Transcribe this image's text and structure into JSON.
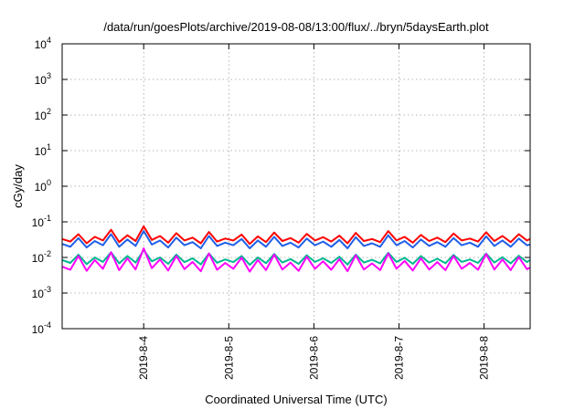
{
  "chart_data": {
    "type": "line",
    "title": "/data/run/goesPlots/archive/2019-08-08/13:00/flux/../bryn/5daysEarth.plot",
    "xlabel": "Coordinated Universal Time (UTC)",
    "ylabel": "cGy/day",
    "yscale": "log",
    "ylim": [
      0.0001,
      10000
    ],
    "xlim": [
      "2019-08-03 01:00",
      "2019-08-08 13:00"
    ],
    "grid": true,
    "y_ticks": [
      {
        "value": 0.0001,
        "base": "10",
        "exp": "-4"
      },
      {
        "value": 0.001,
        "base": "10",
        "exp": "-3"
      },
      {
        "value": 0.01,
        "base": "10",
        "exp": "-2"
      },
      {
        "value": 0.1,
        "base": "10",
        "exp": "-1"
      },
      {
        "value": 1,
        "base": "10",
        "exp": "0"
      },
      {
        "value": 10,
        "base": "10",
        "exp": "1"
      },
      {
        "value": 100,
        "base": "10",
        "exp": "2"
      },
      {
        "value": 1000,
        "base": "10",
        "exp": "3"
      },
      {
        "value": 10000,
        "base": "10",
        "exp": "4"
      }
    ],
    "x_ticks": [
      {
        "value": "2019-08-04 00:00",
        "label": "2019-8-4"
      },
      {
        "value": "2019-08-05 00:00",
        "label": "2019-8-5"
      },
      {
        "value": "2019-08-06 00:00",
        "label": "2019-8-6"
      },
      {
        "value": "2019-08-07 00:00",
        "label": "2019-8-7"
      },
      {
        "value": "2019-08-08 00:00",
        "label": "2019-8-8"
      }
    ],
    "x": [
      "2019-08-03 01:00",
      "2019-08-03 03:18",
      "2019-08-03 05:36",
      "2019-08-03 07:54",
      "2019-08-03 10:12",
      "2019-08-03 12:30",
      "2019-08-03 14:48",
      "2019-08-03 17:06",
      "2019-08-03 19:24",
      "2019-08-03 21:42",
      "2019-08-04 00:00",
      "2019-08-04 02:18",
      "2019-08-04 04:36",
      "2019-08-04 06:54",
      "2019-08-04 09:12",
      "2019-08-04 11:30",
      "2019-08-04 13:48",
      "2019-08-04 16:06",
      "2019-08-04 18:24",
      "2019-08-04 20:42",
      "2019-08-04 23:00",
      "2019-08-05 01:18",
      "2019-08-05 03:36",
      "2019-08-05 05:54",
      "2019-08-05 08:12",
      "2019-08-05 10:30",
      "2019-08-05 12:48",
      "2019-08-05 15:06",
      "2019-08-05 17:24",
      "2019-08-05 19:42",
      "2019-08-05 22:00",
      "2019-08-06 00:18",
      "2019-08-06 02:36",
      "2019-08-06 04:54",
      "2019-08-06 07:12",
      "2019-08-06 09:30",
      "2019-08-06 11:48",
      "2019-08-06 14:06",
      "2019-08-06 16:24",
      "2019-08-06 18:42",
      "2019-08-06 21:00",
      "2019-08-06 23:18",
      "2019-08-07 01:36",
      "2019-08-07 03:54",
      "2019-08-07 06:12",
      "2019-08-07 08:30",
      "2019-08-07 10:48",
      "2019-08-07 13:06",
      "2019-08-07 15:24",
      "2019-08-07 17:42",
      "2019-08-07 20:00",
      "2019-08-07 22:18",
      "2019-08-08 00:36",
      "2019-08-08 02:54",
      "2019-08-08 05:12",
      "2019-08-08 07:30",
      "2019-08-08 09:48",
      "2019-08-08 12:06",
      "2019-08-08 13:00"
    ],
    "series": [
      {
        "color": "#ff0000",
        "values": [
          0.033,
          0.028,
          0.045,
          0.025,
          0.038,
          0.03,
          0.06,
          0.027,
          0.042,
          0.029,
          0.075,
          0.031,
          0.04,
          0.026,
          0.048,
          0.03,
          0.036,
          0.025,
          0.052,
          0.028,
          0.034,
          0.03,
          0.044,
          0.024,
          0.039,
          0.027,
          0.05,
          0.029,
          0.035,
          0.026,
          0.046,
          0.03,
          0.037,
          0.028,
          0.041,
          0.025,
          0.049,
          0.029,
          0.033,
          0.027,
          0.055,
          0.03,
          0.038,
          0.026,
          0.043,
          0.029,
          0.036,
          0.027,
          0.047,
          0.03,
          0.034,
          0.028,
          0.051,
          0.029,
          0.04,
          0.027,
          0.045,
          0.03,
          0.033
        ]
      },
      {
        "color": "#1f5fe8",
        "values": [
          0.024,
          0.02,
          0.035,
          0.019,
          0.029,
          0.022,
          0.045,
          0.02,
          0.032,
          0.021,
          0.055,
          0.023,
          0.03,
          0.019,
          0.036,
          0.022,
          0.027,
          0.018,
          0.04,
          0.021,
          0.026,
          0.022,
          0.033,
          0.018,
          0.03,
          0.02,
          0.038,
          0.021,
          0.026,
          0.019,
          0.034,
          0.022,
          0.028,
          0.02,
          0.031,
          0.018,
          0.037,
          0.021,
          0.025,
          0.02,
          0.042,
          0.022,
          0.029,
          0.019,
          0.032,
          0.021,
          0.027,
          0.02,
          0.035,
          0.022,
          0.026,
          0.02,
          0.039,
          0.021,
          0.03,
          0.02,
          0.034,
          0.022,
          0.023
        ]
      },
      {
        "color": "#00b890",
        "values": [
          0.0085,
          0.007,
          0.012,
          0.0065,
          0.01,
          0.0075,
          0.014,
          0.0068,
          0.011,
          0.0072,
          0.016,
          0.0078,
          0.01,
          0.0066,
          0.012,
          0.0074,
          0.0095,
          0.0064,
          0.013,
          0.0071,
          0.0088,
          0.0074,
          0.011,
          0.0062,
          0.01,
          0.0069,
          0.0125,
          0.0072,
          0.009,
          0.0066,
          0.0115,
          0.0075,
          0.0095,
          0.007,
          0.0105,
          0.0063,
          0.012,
          0.0072,
          0.0086,
          0.0068,
          0.0135,
          0.0075,
          0.0098,
          0.0066,
          0.011,
          0.0072,
          0.0092,
          0.0069,
          0.0118,
          0.0075,
          0.0088,
          0.007,
          0.0128,
          0.0072,
          0.0102,
          0.0068,
          0.0112,
          0.0074,
          0.0085
        ]
      },
      {
        "color": "#ff00ff",
        "values": [
          0.0055,
          0.0045,
          0.011,
          0.0042,
          0.0085,
          0.0048,
          0.014,
          0.0044,
          0.0095,
          0.0046,
          0.018,
          0.005,
          0.0088,
          0.0043,
          0.011,
          0.0047,
          0.0075,
          0.0041,
          0.013,
          0.0045,
          0.007,
          0.0048,
          0.0098,
          0.004,
          0.0085,
          0.0044,
          0.012,
          0.0046,
          0.0072,
          0.0042,
          0.0105,
          0.0048,
          0.0078,
          0.0045,
          0.009,
          0.0041,
          0.0115,
          0.0046,
          0.0068,
          0.0044,
          0.013,
          0.0048,
          0.008,
          0.0043,
          0.0095,
          0.0046,
          0.0074,
          0.0044,
          0.011,
          0.0048,
          0.007,
          0.0045,
          0.0125,
          0.0046,
          0.0088,
          0.0044,
          0.0102,
          0.0047,
          0.0052
        ]
      }
    ]
  }
}
